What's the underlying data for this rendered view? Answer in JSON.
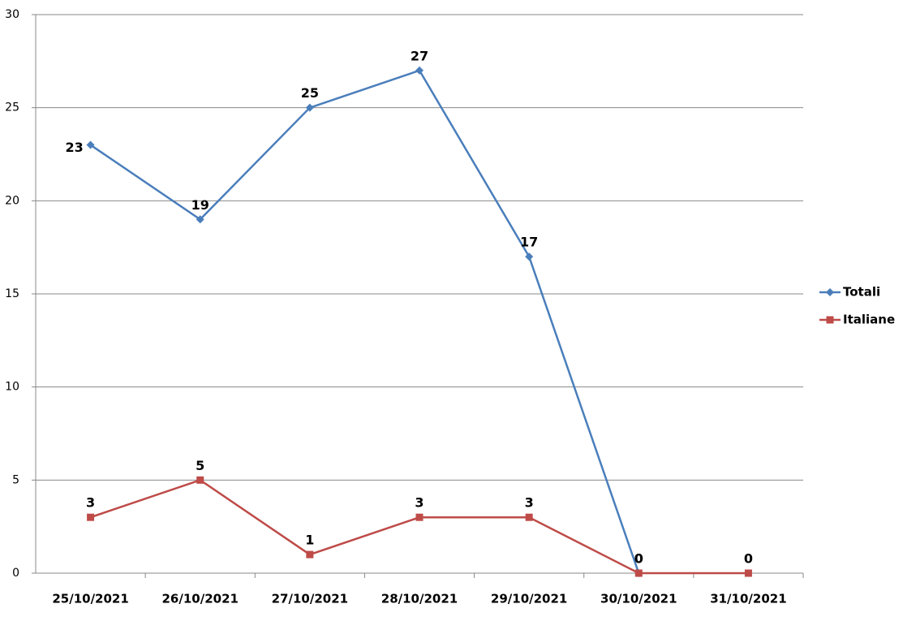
{
  "chart_data": {
    "type": "line",
    "categories": [
      "25/10/2021",
      "26/10/2021",
      "27/10/2021",
      "28/10/2021",
      "29/10/2021",
      "30/10/2021",
      "31/10/2021"
    ],
    "series": [
      {
        "name": "Totali",
        "color": "#4a7ebb",
        "marker": "diamond",
        "values": [
          23,
          19,
          25,
          27,
          17,
          0,
          null
        ]
      },
      {
        "name": "Italiane",
        "color": "#be4b48",
        "marker": "square",
        "values": [
          3,
          5,
          1,
          3,
          3,
          0,
          0
        ]
      }
    ],
    "ylim": [
      0,
      30
    ],
    "yticks": [
      0,
      5,
      10,
      15,
      20,
      25,
      30
    ],
    "grid": true,
    "legend": "right"
  }
}
